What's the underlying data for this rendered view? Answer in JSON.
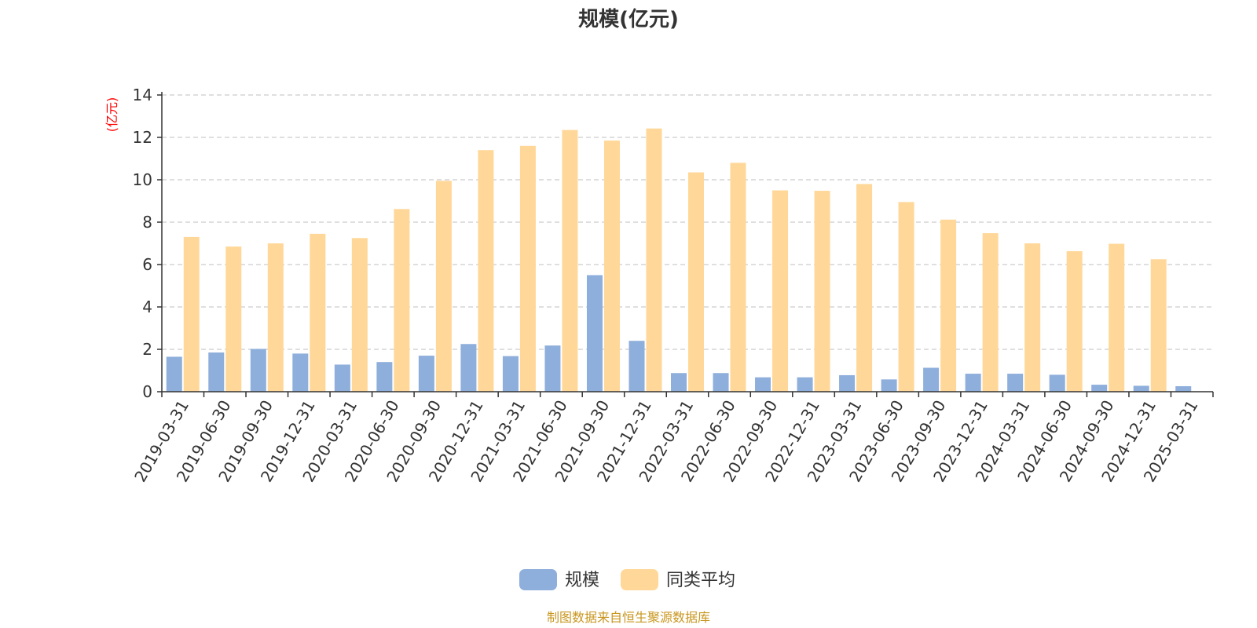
{
  "chart_data": {
    "type": "bar",
    "title": "规模(亿元)",
    "unit_label": "(亿元)",
    "categories": [
      "2019-03-31",
      "2019-06-30",
      "2019-09-30",
      "2019-12-31",
      "2020-03-31",
      "2020-06-30",
      "2020-09-30",
      "2020-12-31",
      "2021-03-31",
      "2021-06-30",
      "2021-09-30",
      "2021-12-31",
      "2022-03-31",
      "2022-06-30",
      "2022-09-30",
      "2022-12-31",
      "2023-03-31",
      "2023-06-30",
      "2023-09-30",
      "2023-12-31",
      "2024-03-31",
      "2024-06-30",
      "2024-09-30",
      "2024-12-31",
      "2025-03-31"
    ],
    "series": [
      {
        "name": "规模",
        "color": "#8eaedb",
        "values": [
          1.65,
          1.85,
          2.02,
          1.8,
          1.28,
          1.4,
          1.7,
          2.25,
          1.68,
          2.18,
          5.5,
          2.4,
          0.88,
          0.88,
          0.68,
          0.68,
          0.78,
          0.58,
          1.13,
          0.85,
          0.85,
          0.8,
          0.33,
          0.28,
          0.26
        ]
      },
      {
        "name": "同类平均",
        "color": "#ffd899",
        "values": [
          7.3,
          6.85,
          7.0,
          7.45,
          7.25,
          8.62,
          9.95,
          11.4,
          11.6,
          12.35,
          11.85,
          12.42,
          10.35,
          10.8,
          9.5,
          9.48,
          9.8,
          8.95,
          8.12,
          7.48,
          7.0,
          6.63,
          6.98,
          6.25,
          null
        ]
      }
    ],
    "ylim": [
      0,
      14
    ],
    "yticks": [
      0,
      2,
      4,
      6,
      8,
      10,
      12,
      14
    ],
    "grid": true,
    "legend_position": "bottom-center"
  },
  "source_text": "制图数据来自恒生聚源数据库"
}
